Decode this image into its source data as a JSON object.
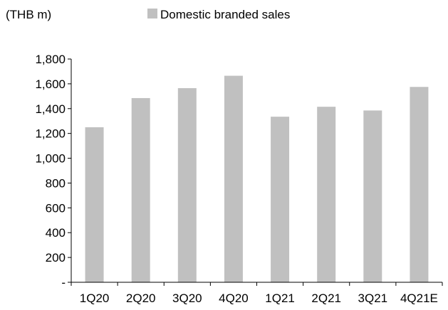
{
  "chart_data": {
    "type": "bar",
    "unit_label": "(THB m)",
    "categories": [
      "1Q20",
      "2Q20",
      "3Q20",
      "4Q20",
      "1Q21",
      "2Q21",
      "3Q21",
      "4Q21E"
    ],
    "series": [
      {
        "name": "Domestic branded sales",
        "values": [
          1250,
          1485,
          1565,
          1665,
          1335,
          1415,
          1385,
          1575
        ],
        "color": "#c0c0c0"
      }
    ],
    "ylim": [
      0,
      1800
    ],
    "yticks": [
      0,
      200,
      400,
      600,
      800,
      1000,
      1200,
      1400,
      1600,
      1800
    ],
    "ytick_labels": [
      "-",
      "200",
      "400",
      "600",
      "800",
      "1,000",
      "1,200",
      "1,400",
      "1,600",
      "1,800"
    ],
    "grid": false,
    "legend_position": "top"
  }
}
